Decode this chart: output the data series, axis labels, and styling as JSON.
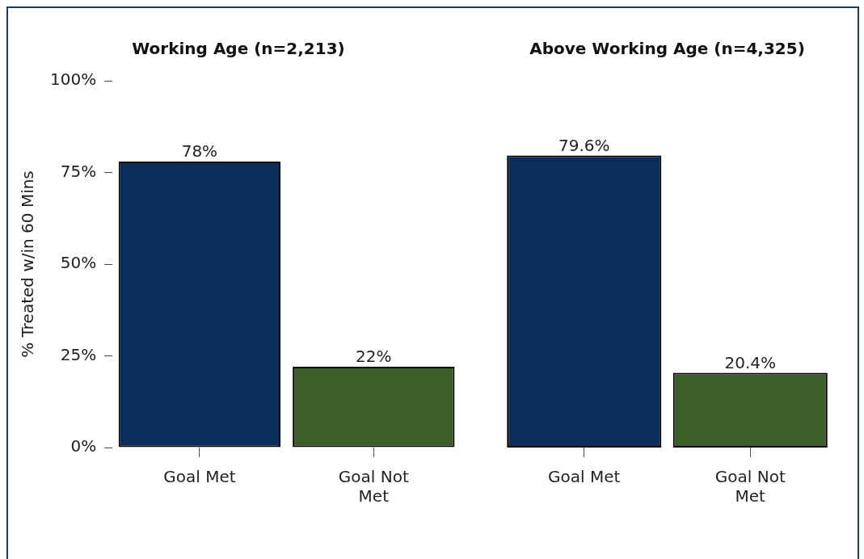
{
  "chart_data": [
    {
      "type": "bar",
      "title": "Working Age (n=2,213)",
      "ylabel": "% Treated w/in 60 Mins",
      "categories": [
        "Goal Met",
        "Goal Not Met"
      ],
      "values": [
        78,
        22
      ],
      "colors": [
        "#0b2d5b",
        "#3c5f2a"
      ],
      "value_labels": [
        "78%",
        "22%"
      ],
      "ylim": [
        0,
        100
      ],
      "yticks": [
        {
          "value": 0,
          "label": "0%"
        },
        {
          "value": 25,
          "label": "25%"
        },
        {
          "value": 50,
          "label": "50%"
        },
        {
          "value": 75,
          "label": "75%"
        },
        {
          "value": 100,
          "label": "100%"
        }
      ],
      "grid": false,
      "legend": false
    },
    {
      "type": "bar",
      "title": "Above Working Age (n=4,325)",
      "categories": [
        "Goal Met",
        "Goal Not Met"
      ],
      "values": [
        79.6,
        20.4
      ],
      "colors": [
        "#0b2d5b",
        "#3c5f2a"
      ],
      "value_labels": [
        "79.6%",
        "20.4%"
      ],
      "ylim": [
        0,
        100
      ],
      "tick_labels": "x",
      "grid": false,
      "legend": false
    }
  ]
}
